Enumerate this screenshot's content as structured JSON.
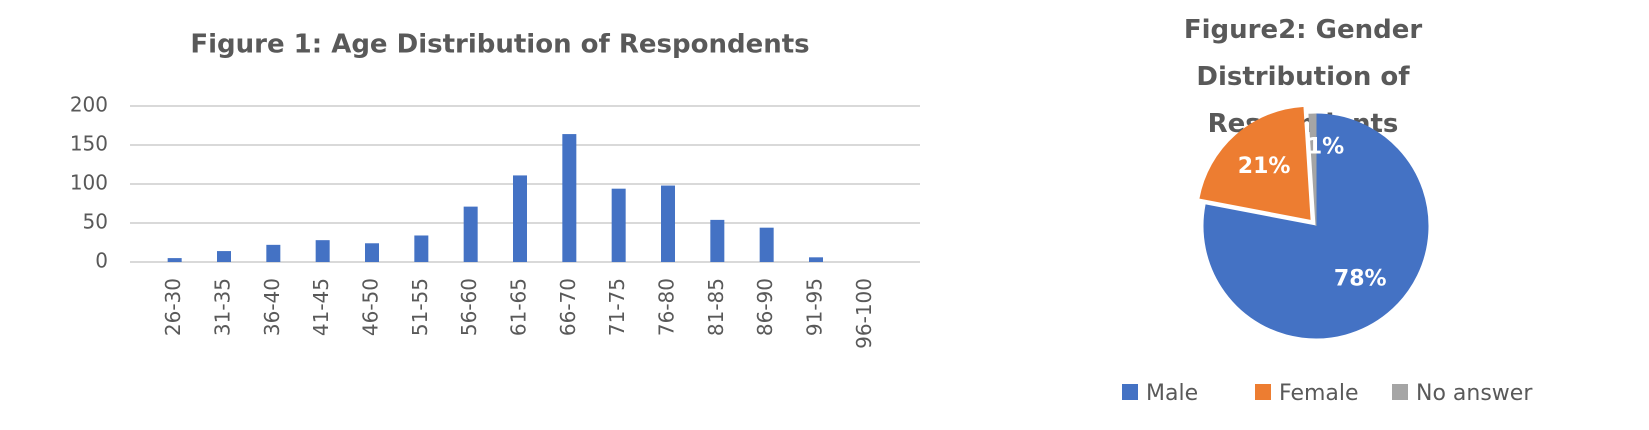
{
  "chart_data": [
    {
      "type": "bar",
      "title": "Figure 1: Age Distribution of Respondents",
      "categories": [
        "26-30",
        "31-35",
        "36-40",
        "41-45",
        "46-50",
        "51-55",
        "56-60",
        "61-65",
        "66-70",
        "71-75",
        "76-80",
        "81-85",
        "86-90",
        "91-95",
        "96-100"
      ],
      "values": [
        5,
        14,
        22,
        28,
        24,
        34,
        71,
        111,
        164,
        94,
        98,
        54,
        44,
        6,
        0
      ],
      "color": "#4472c4",
      "ylim": [
        0,
        200
      ],
      "yticks": [
        0,
        50,
        100,
        150,
        200
      ],
      "grid": true
    },
    {
      "type": "pie",
      "title": "Figure2: Gender Distribution of Respondents",
      "categories": [
        "Male",
        "Female",
        "No answer"
      ],
      "values": [
        78,
        21,
        1
      ],
      "value_labels": [
        "78%",
        "21%",
        "1%"
      ],
      "colors": [
        "#4472c4",
        "#ed7d31",
        "#a5a5a5"
      ],
      "legend": "bottom"
    }
  ]
}
